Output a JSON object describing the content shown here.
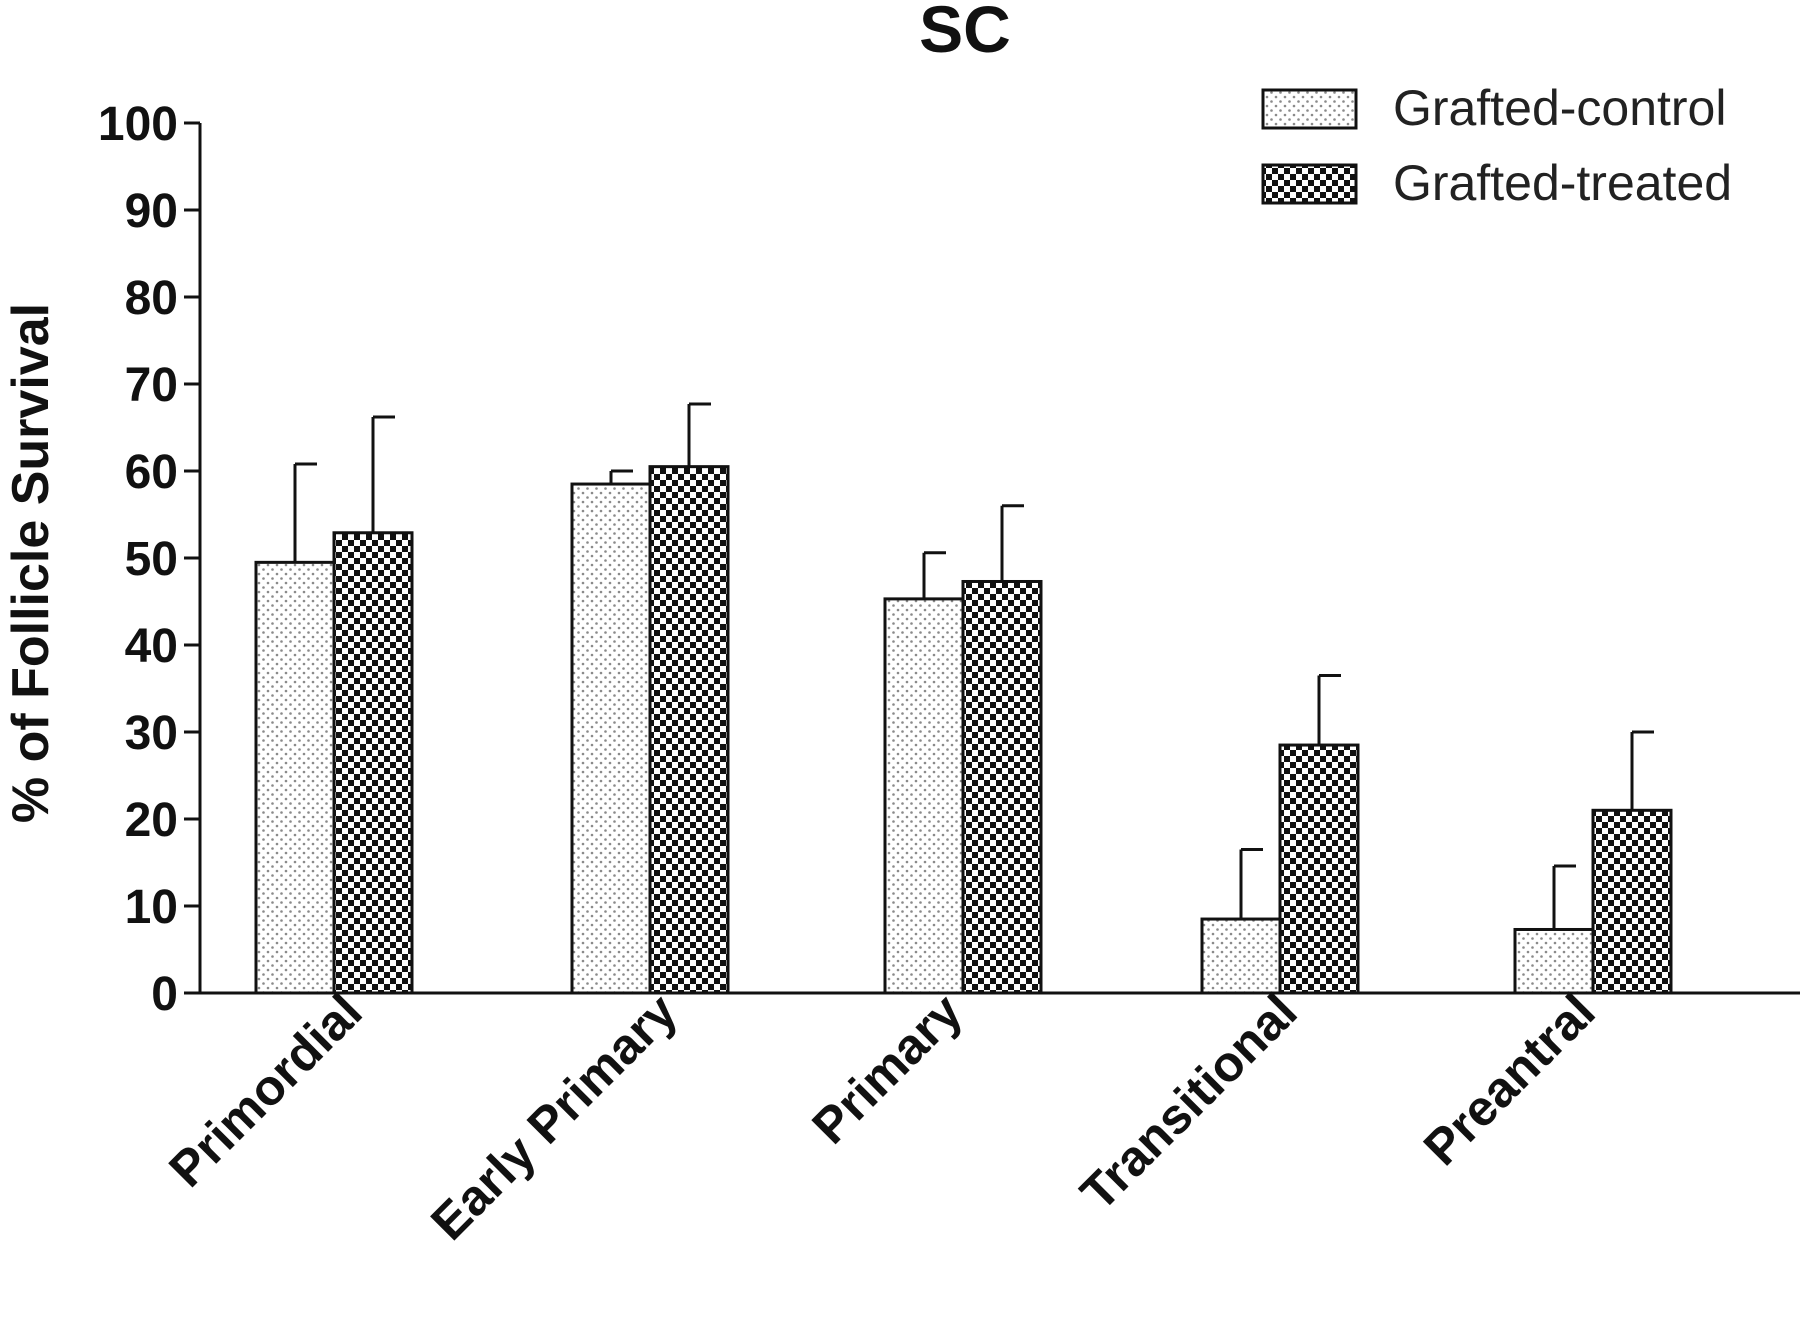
{
  "chart_data": {
    "type": "bar",
    "title": "SC",
    "xlabel": "",
    "ylabel": "% of Follicle Survival",
    "ylim": [
      0,
      100
    ],
    "yticks": [
      0,
      10,
      20,
      30,
      40,
      50,
      60,
      70,
      80,
      90,
      100
    ],
    "categories": [
      "Primordial",
      "Early Primary",
      "Primary",
      "Transitional",
      "Preantral"
    ],
    "series": [
      {
        "name": "Grafted-control",
        "pattern": "dotted",
        "values": [
          49.5,
          58.5,
          45.3,
          8.5,
          7.3
        ],
        "error": [
          11.3,
          1.5,
          5.3,
          8.0,
          7.3
        ]
      },
      {
        "name": "Grafted-treated",
        "pattern": "checkered",
        "values": [
          52.9,
          60.5,
          47.3,
          28.5,
          21.0
        ],
        "error": [
          13.3,
          7.2,
          8.7,
          8.0,
          9.0
        ]
      }
    ],
    "grid": false,
    "legend_position": "top-right",
    "colors": {
      "bar_stroke": "#111111",
      "dot": "#8a8a8a",
      "checker": "#111111",
      "axis": "#111111"
    }
  }
}
